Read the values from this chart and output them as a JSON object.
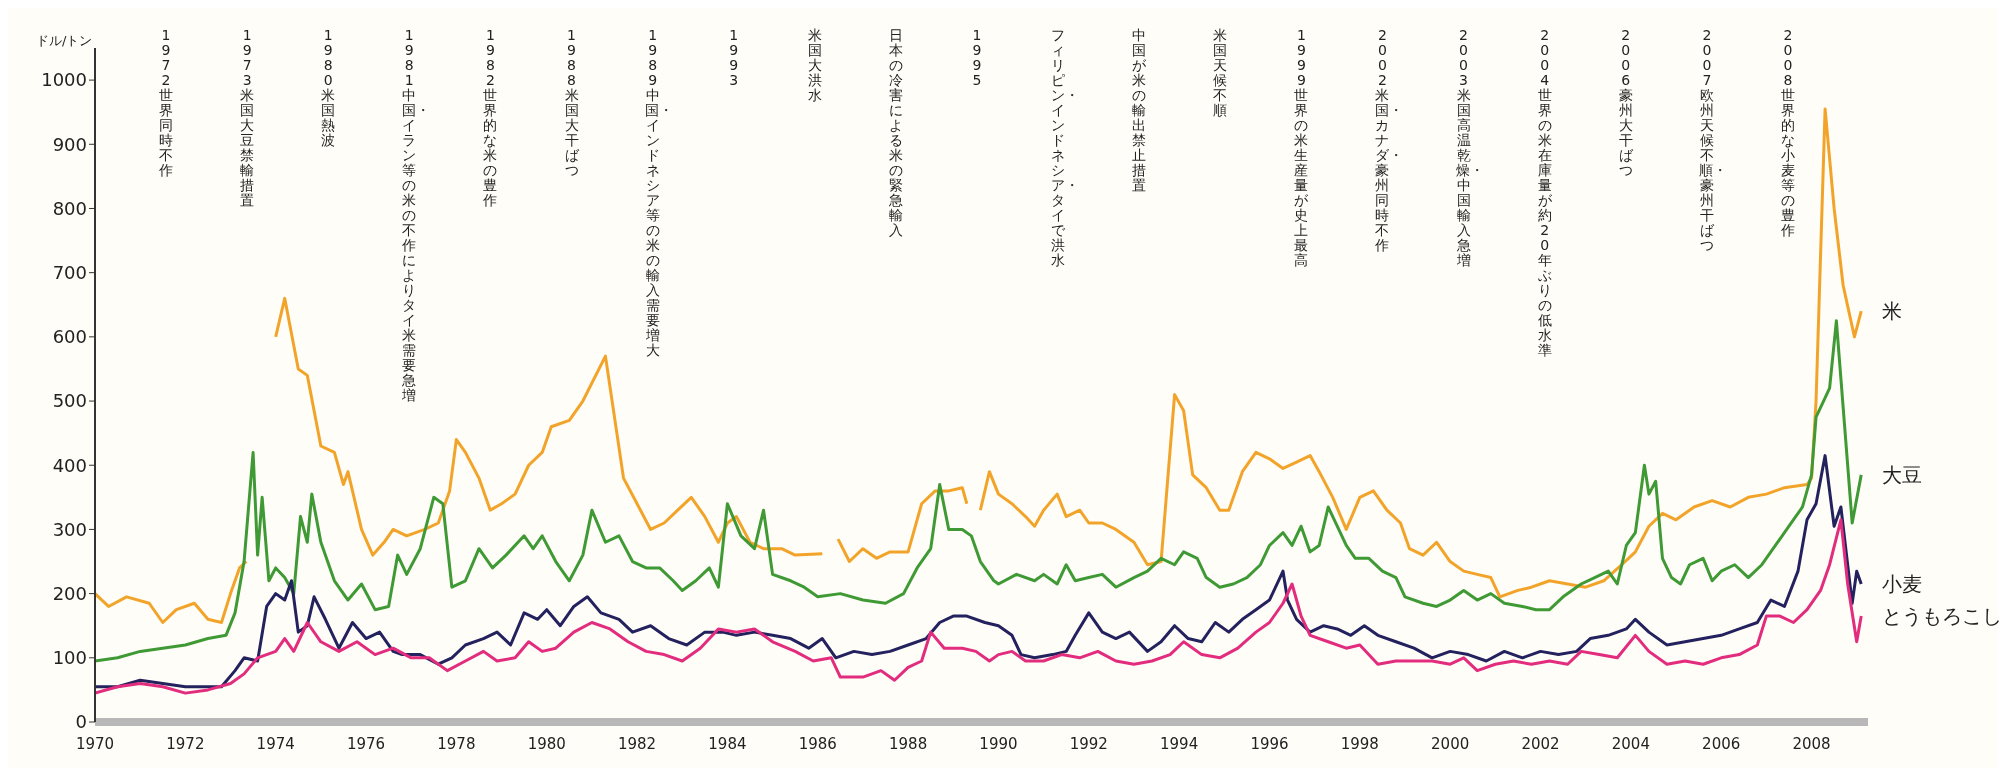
{
  "chart_data": {
    "type": "line",
    "ylabel": "ドル/トン",
    "xlim": [
      1970,
      2009.25
    ],
    "xticks": [
      1970,
      1972,
      1974,
      1976,
      1978,
      1980,
      1982,
      1984,
      1986,
      1988,
      1990,
      1992,
      1994,
      1996,
      1998,
      2000,
      2002,
      2004,
      2006,
      2008
    ],
    "ylim": [
      0,
      1050
    ],
    "yticks": [
      0,
      100,
      200,
      300,
      400,
      500,
      600,
      700,
      800,
      900,
      1000
    ],
    "legend": "right",
    "line_style": "solid",
    "series": [
      {
        "name": "米",
        "color": "#f2a42a",
        "x": [
          1970,
          1970.3,
          1970.7,
          1971.2,
          1971.5,
          1971.8,
          1972.2,
          1972.5,
          1972.8,
          1973,
          1973.2,
          1973.35,
          1973.6,
          1974,
          1974.2,
          1974.5,
          1974.7,
          1975,
          1975.3,
          1975.5,
          1975.6,
          1975.9,
          1976.15,
          1976.4,
          1976.6,
          1976.9,
          1977.3,
          1977.6,
          1977.85,
          1978,
          1978.2,
          1978.5,
          1978.75,
          1979,
          1979.3,
          1979.6,
          1979.9,
          1980.1,
          1980.5,
          1980.8,
          1981.3,
          1981.7,
          1982,
          1982.3,
          1982.6,
          1982.9,
          1983.2,
          1983.5,
          1983.8,
          1984,
          1984.2,
          1984.5,
          1984.8,
          1985.2,
          1985.5,
          1986.1,
          1986.3,
          1986.45,
          1986.7,
          1987,
          1987.3,
          1987.6,
          1988,
          1988.3,
          1988.6,
          1988.9,
          1989.2,
          1989.3,
          1989.45,
          1989.6,
          1989.8,
          1990,
          1990.3,
          1990.6,
          1990.8,
          1991,
          1991.3,
          1991.5,
          1991.8,
          1992,
          1992.3,
          1992.6,
          1993,
          1993.3,
          1993.6,
          1993.9,
          1994.1,
          1994.3,
          1994.6,
          1994.9,
          1995.1,
          1995.4,
          1995.7,
          1996,
          1996.3,
          1996.6,
          1996.9,
          1997.1,
          1997.4,
          1997.7,
          1998,
          1998.3,
          1998.6,
          1998.9,
          1999.1,
          1999.4,
          1999.7,
          2000,
          2000.3,
          2000.6,
          2000.9,
          2001.1,
          2001.5,
          2001.8,
          2002.2,
          2002.6,
          2003,
          2003.4,
          2003.8,
          2004.1,
          2004.4,
          2004.7,
          2005,
          2005.4,
          2005.8,
          2006.2,
          2006.6,
          2007,
          2007.4,
          2007.9,
          2008,
          2008.1,
          2008.3,
          2008.5,
          2008.7,
          2008.95,
          2009.1
        ],
        "values": [
          200,
          180,
          195,
          185,
          155,
          175,
          185,
          160,
          155,
          200,
          240,
          250,
          null,
          600,
          660,
          550,
          540,
          430,
          420,
          370,
          390,
          300,
          260,
          280,
          300,
          290,
          300,
          310,
          360,
          440,
          420,
          380,
          330,
          340,
          355,
          400,
          420,
          460,
          470,
          500,
          570,
          380,
          340,
          300,
          310,
          330,
          350,
          320,
          280,
          310,
          320,
          280,
          270,
          270,
          260,
          262,
          null,
          285,
          250,
          270,
          255,
          265,
          265,
          340,
          360,
          360,
          365,
          340,
          null,
          330,
          390,
          355,
          340,
          320,
          305,
          330,
          355,
          320,
          330,
          310,
          310,
          300,
          280,
          245,
          250,
          510,
          485,
          385,
          365,
          330,
          330,
          390,
          420,
          410,
          395,
          405,
          415,
          390,
          350,
          300,
          350,
          360,
          330,
          310,
          270,
          260,
          280,
          250,
          235,
          230,
          225,
          195,
          205,
          210,
          220,
          215,
          210,
          220,
          245,
          265,
          305,
          325,
          315,
          335,
          345,
          335,
          350,
          355,
          365,
          370,
          380,
          500,
          955,
          800,
          680,
          600,
          640
        ]
      },
      {
        "name": "大豆",
        "color": "#3f9a35",
        "x": [
          1970,
          1970.5,
          1971,
          1971.5,
          1972,
          1972.5,
          1972.9,
          1973.1,
          1973.3,
          1973.5,
          1973.6,
          1973.7,
          1973.85,
          1974,
          1974.2,
          1974.4,
          1974.55,
          1974.7,
          1974.8,
          1975,
          1975.3,
          1975.6,
          1975.9,
          1976.2,
          1976.5,
          1976.7,
          1976.9,
          1977.2,
          1977.5,
          1977.7,
          1977.9,
          1978.2,
          1978.5,
          1978.8,
          1979.1,
          1979.5,
          1979.7,
          1979.9,
          1980.2,
          1980.5,
          1980.8,
          1981,
          1981.3,
          1981.6,
          1981.9,
          1982.2,
          1982.5,
          1982.8,
          1983,
          1983.3,
          1983.6,
          1983.8,
          1984,
          1984.3,
          1984.6,
          1984.8,
          1985,
          1985.4,
          1985.7,
          1986,
          1986.5,
          1987,
          1987.5,
          1987.9,
          1988.2,
          1988.5,
          1988.7,
          1988.9,
          1989.2,
          1989.4,
          1989.6,
          1989.9,
          1990,
          1990.4,
          1990.8,
          1991,
          1991.3,
          1991.5,
          1991.7,
          1992,
          1992.3,
          1992.6,
          1993,
          1993.3,
          1993.6,
          1993.9,
          1994.1,
          1994.4,
          1994.6,
          1994.9,
          1995.2,
          1995.5,
          1995.8,
          1996,
          1996.3,
          1996.5,
          1996.7,
          1996.9,
          1997.1,
          1997.3,
          1997.5,
          1997.7,
          1997.9,
          1998.2,
          1998.5,
          1998.8,
          1999,
          1999.4,
          1999.7,
          2000,
          2000.3,
          2000.6,
          2000.9,
          2001.2,
          2001.6,
          2001.9,
          2002.2,
          2002.5,
          2002.9,
          2003.2,
          2003.5,
          2003.7,
          2003.9,
          2004.1,
          2004.3,
          2004.4,
          2004.55,
          2004.7,
          2004.9,
          2005.1,
          2005.3,
          2005.6,
          2005.8,
          2006,
          2006.3,
          2006.6,
          2006.9,
          2007.2,
          2007.5,
          2007.8,
          2008,
          2008.1,
          2008.3,
          2008.4,
          2008.55,
          2008.7,
          2008.9,
          2009.1
        ],
        "values": [
          95,
          100,
          110,
          115,
          120,
          130,
          135,
          170,
          250,
          420,
          260,
          350,
          220,
          240,
          225,
          200,
          320,
          280,
          355,
          280,
          220,
          190,
          215,
          175,
          180,
          260,
          230,
          270,
          350,
          340,
          210,
          220,
          270,
          240,
          260,
          290,
          270,
          290,
          250,
          220,
          260,
          330,
          280,
          290,
          250,
          240,
          240,
          220,
          205,
          220,
          240,
          210,
          340,
          290,
          270,
          330,
          230,
          220,
          210,
          195,
          200,
          190,
          185,
          200,
          240,
          270,
          370,
          300,
          300,
          290,
          250,
          220,
          215,
          230,
          220,
          230,
          215,
          245,
          220,
          225,
          230,
          210,
          225,
          235,
          255,
          245,
          265,
          255,
          225,
          210,
          215,
          225,
          245,
          275,
          295,
          275,
          305,
          265,
          275,
          335,
          305,
          275,
          255,
          255,
          235,
          225,
          195,
          185,
          180,
          190,
          205,
          190,
          200,
          185,
          180,
          175,
          175,
          195,
          215,
          225,
          235,
          215,
          275,
          295,
          400,
          355,
          375,
          255,
          225,
          215,
          245,
          255,
          220,
          235,
          245,
          225,
          245,
          275,
          305,
          335,
          385,
          475,
          505,
          520,
          625,
          490,
          310,
          385
        ]
      },
      {
        "name": "小麦",
        "color": "#23225e",
        "x": [
          1970,
          1970.5,
          1971,
          1971.5,
          1972,
          1972.5,
          1972.8,
          1973.1,
          1973.3,
          1973.6,
          1973.8,
          1974,
          1974.2,
          1974.35,
          1974.5,
          1974.7,
          1974.85,
          1975.1,
          1975.4,
          1975.7,
          1976,
          1976.3,
          1976.6,
          1976.8,
          1977.2,
          1977.6,
          1977.9,
          1978.2,
          1978.6,
          1978.9,
          1979.2,
          1979.5,
          1979.8,
          1980,
          1980.3,
          1980.6,
          1980.9,
          1981.2,
          1981.6,
          1981.9,
          1982.3,
          1982.7,
          1983.1,
          1983.5,
          1983.9,
          1984.2,
          1984.6,
          1985,
          1985.4,
          1985.8,
          1986.1,
          1986.4,
          1986.8,
          1987.2,
          1987.6,
          1988,
          1988.4,
          1988.7,
          1989,
          1989.3,
          1989.7,
          1990,
          1990.3,
          1990.5,
          1990.8,
          1991.2,
          1991.5,
          1991.7,
          1992,
          1992.3,
          1992.6,
          1992.9,
          1993.3,
          1993.6,
          1993.9,
          1994.2,
          1994.5,
          1994.8,
          1995.1,
          1995.4,
          1995.7,
          1996,
          1996.3,
          1996.4,
          1996.6,
          1996.9,
          1997.2,
          1997.5,
          1997.8,
          1998.1,
          1998.4,
          1998.8,
          1999.2,
          1999.6,
          2000,
          2000.4,
          2000.8,
          2001.2,
          2001.6,
          2002,
          2002.4,
          2002.8,
          2003.1,
          2003.5,
          2003.9,
          2004.1,
          2004.4,
          2004.8,
          2005.2,
          2005.6,
          2006,
          2006.4,
          2006.8,
          2007.1,
          2007.4,
          2007.7,
          2007.9,
          2008.1,
          2008.3,
          2008.5,
          2008.65,
          2008.9,
          2009,
          2009.1
        ],
        "values": [
          55,
          55,
          65,
          60,
          55,
          55,
          55,
          80,
          100,
          95,
          180,
          200,
          190,
          220,
          140,
          150,
          195,
          160,
          115,
          155,
          130,
          140,
          110,
          105,
          105,
          90,
          100,
          120,
          130,
          140,
          120,
          170,
          160,
          175,
          150,
          180,
          195,
          170,
          160,
          140,
          150,
          130,
          120,
          140,
          140,
          135,
          140,
          135,
          130,
          115,
          130,
          100,
          110,
          105,
          110,
          120,
          130,
          155,
          165,
          165,
          155,
          150,
          135,
          105,
          100,
          105,
          110,
          135,
          170,
          140,
          130,
          140,
          110,
          125,
          150,
          130,
          125,
          155,
          140,
          160,
          175,
          190,
          235,
          190,
          160,
          140,
          150,
          145,
          135,
          150,
          135,
          125,
          115,
          100,
          110,
          105,
          95,
          110,
          100,
          110,
          105,
          110,
          130,
          135,
          145,
          160,
          140,
          120,
          125,
          130,
          135,
          145,
          155,
          190,
          180,
          235,
          315,
          340,
          415,
          305,
          335,
          185,
          235,
          215
        ]
      },
      {
        "name": "とうもろこし",
        "color": "#e22c7d",
        "x": [
          1970,
          1970.5,
          1971,
          1971.5,
          1972,
          1972.5,
          1973,
          1973.3,
          1973.6,
          1974,
          1974.2,
          1974.4,
          1974.7,
          1975,
          1975.4,
          1975.8,
          1976.2,
          1976.6,
          1977,
          1977.4,
          1977.8,
          1978.2,
          1978.6,
          1978.9,
          1979.3,
          1979.6,
          1979.9,
          1980.2,
          1980.6,
          1981,
          1981.4,
          1981.8,
          1982.2,
          1982.6,
          1983,
          1983.4,
          1983.8,
          1984.2,
          1984.6,
          1985,
          1985.5,
          1985.9,
          1986.3,
          1986.5,
          1987,
          1987.4,
          1987.7,
          1988,
          1988.3,
          1988.5,
          1988.8,
          1989.2,
          1989.5,
          1989.8,
          1990,
          1990.3,
          1990.6,
          1991,
          1991.4,
          1991.8,
          1992.2,
          1992.6,
          1993,
          1993.4,
          1993.8,
          1994.1,
          1994.5,
          1994.9,
          1995.3,
          1995.7,
          1996,
          1996.3,
          1996.5,
          1996.7,
          1996.9,
          1997.3,
          1997.7,
          1998,
          1998.4,
          1998.8,
          1999.2,
          1999.6,
          2000,
          2000.3,
          2000.6,
          2001,
          2001.4,
          2001.8,
          2002.2,
          2002.6,
          2002.9,
          2003.3,
          2003.7,
          2004.1,
          2004.4,
          2004.8,
          2005.2,
          2005.6,
          2006,
          2006.4,
          2006.8,
          2007,
          2007.3,
          2007.6,
          2007.9,
          2008.2,
          2008.4,
          2008.65,
          2008.8,
          2009,
          2009.1
        ],
        "values": [
          45,
          55,
          60,
          55,
          45,
          50,
          60,
          75,
          100,
          110,
          130,
          110,
          155,
          125,
          110,
          125,
          105,
          115,
          100,
          100,
          80,
          95,
          110,
          95,
          100,
          125,
          110,
          115,
          140,
          155,
          145,
          125,
          110,
          105,
          95,
          115,
          145,
          140,
          145,
          125,
          110,
          95,
          100,
          70,
          70,
          80,
          65,
          85,
          95,
          140,
          115,
          115,
          110,
          95,
          105,
          110,
          95,
          95,
          105,
          100,
          110,
          95,
          90,
          95,
          105,
          125,
          105,
          100,
          115,
          140,
          155,
          185,
          215,
          165,
          135,
          125,
          115,
          120,
          90,
          95,
          95,
          95,
          90,
          100,
          80,
          90,
          95,
          90,
          95,
          90,
          110,
          105,
          100,
          135,
          110,
          90,
          95,
          90,
          100,
          105,
          120,
          165,
          165,
          155,
          175,
          205,
          245,
          315,
          215,
          125,
          165
        ]
      }
    ],
    "annotations": [
      "1972 世界同時不作",
      "1973 米国大豆禁輸措置",
      "1980 米国熱波",
      "1981 中国・イラン等の米の不作によりタイ米需要急増",
      "1982 世界的な米の豊作",
      "1988 米国大干ばつ",
      "1989 中国・インドネシア等の米の輸入需要増大",
      "1993",
      "米国大洪水",
      "日本の冷害による米の緊急輸入",
      "1995",
      "フィリピン・インドネシア・タイで洪水",
      "中国が米の輸出禁止措置",
      "米国天候不順",
      "1999 世界の米生産量が史上最高",
      "2002 米国・カナダ・豪州同時不作",
      "2003 米国高温乾燥・中国輸入急増",
      "2004 世界の米在庫量が約20年ぶりの低水準",
      "2006 豪州大干ばつ",
      "2007 欧州天候不順・豪州干ばつ",
      "2008 世界的な小麦等の豊作"
    ]
  }
}
